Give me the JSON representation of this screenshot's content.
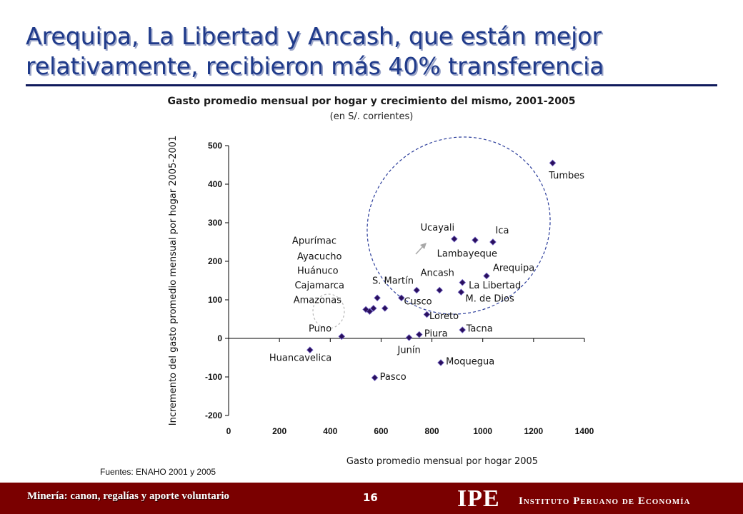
{
  "slide": {
    "title": "Arequipa, La Libertad y Ancash, que están mejor relativamente, recibieron más 40% transferencia",
    "source": "Fuentes: ENAHO 2001 y 2005",
    "footer_topic": "Minería: canon, regalías y aporte voluntario",
    "page_number": "16",
    "logo": "IPE",
    "organization": "Instituto Peruano de Economía"
  },
  "chart_data": {
    "type": "scatter",
    "title": "Gasto promedio mensual por hogar y crecimiento del mismo, 2001-2005",
    "subtitle": "(en S/. corrientes)",
    "xlabel": "Gasto promedio mensual por hogar 2005",
    "ylabel": "Incremento del gasto promedio mensual por hogar 2005-2001",
    "xlim": [
      0,
      1400
    ],
    "ylim": [
      -200,
      500
    ],
    "xticks": [
      "0",
      "200",
      "400",
      "600",
      "800",
      "1000",
      "1200",
      "1400"
    ],
    "yticks": [
      "500",
      "400",
      "300",
      "200",
      "100",
      "0",
      "-100",
      "-200"
    ],
    "grid": false,
    "marker_color": "#2a0f5c",
    "points": [
      {
        "x": 1275,
        "y": 455
      },
      {
        "x": 888,
        "y": 258
      },
      {
        "x": 970,
        "y": 255
      },
      {
        "x": 1040,
        "y": 250
      },
      {
        "x": 1015,
        "y": 162
      },
      {
        "x": 920,
        "y": 145
      },
      {
        "x": 830,
        "y": 125
      },
      {
        "x": 740,
        "y": 125
      },
      {
        "x": 915,
        "y": 120
      },
      {
        "x": 680,
        "y": 105
      },
      {
        "x": 585,
        "y": 105
      },
      {
        "x": 540,
        "y": 75
      },
      {
        "x": 555,
        "y": 70
      },
      {
        "x": 570,
        "y": 78
      },
      {
        "x": 615,
        "y": 78
      },
      {
        "x": 780,
        "y": 62
      },
      {
        "x": 920,
        "y": 22
      },
      {
        "x": 750,
        "y": 10
      },
      {
        "x": 710,
        "y": 2
      },
      {
        "x": 445,
        "y": 5
      },
      {
        "x": 320,
        "y": -30
      },
      {
        "x": 835,
        "y": -63
      },
      {
        "x": 575,
        "y": -102
      }
    ],
    "annotations": [
      {
        "text": "Tumbes",
        "x": 1260,
        "y": 415
      },
      {
        "text": "Ucayali",
        "x": 755,
        "y": 280
      },
      {
        "text": "Ica",
        "x": 1050,
        "y": 272
      },
      {
        "text": "Lambayeque",
        "x": 820,
        "y": 212
      },
      {
        "text": "Arequipa",
        "x": 1040,
        "y": 175
      },
      {
        "text": "Ancash",
        "x": 755,
        "y": 162
      },
      {
        "text": "S. Martín",
        "x": 565,
        "y": 142
      },
      {
        "text": "La Libertad",
        "x": 945,
        "y": 130
      },
      {
        "text": "M. de Dios",
        "x": 932,
        "y": 95
      },
      {
        "text": "Cusco",
        "x": 690,
        "y": 88
      },
      {
        "text": "Loreto",
        "x": 790,
        "y": 50
      },
      {
        "text": "Apurímac",
        "x": 250,
        "y": 245
      },
      {
        "text": "Ayacucho",
        "x": 270,
        "y": 205
      },
      {
        "text": "Huánuco",
        "x": 270,
        "y": 168
      },
      {
        "text": "Cajamarca",
        "x": 260,
        "y": 130
      },
      {
        "text": "Amazonas",
        "x": 255,
        "y": 92
      },
      {
        "text": "Puno",
        "x": 315,
        "y": 18
      },
      {
        "text": "Piura",
        "x": 770,
        "y": 5
      },
      {
        "text": "Tacna",
        "x": 935,
        "y": 18
      },
      {
        "text": "Junín",
        "x": 665,
        "y": -38
      },
      {
        "text": "Huancavelica",
        "x": 160,
        "y": -58
      },
      {
        "text": "Moquegua",
        "x": 855,
        "y": -68
      },
      {
        "text": "Pasco",
        "x": 595,
        "y": -107
      }
    ]
  }
}
